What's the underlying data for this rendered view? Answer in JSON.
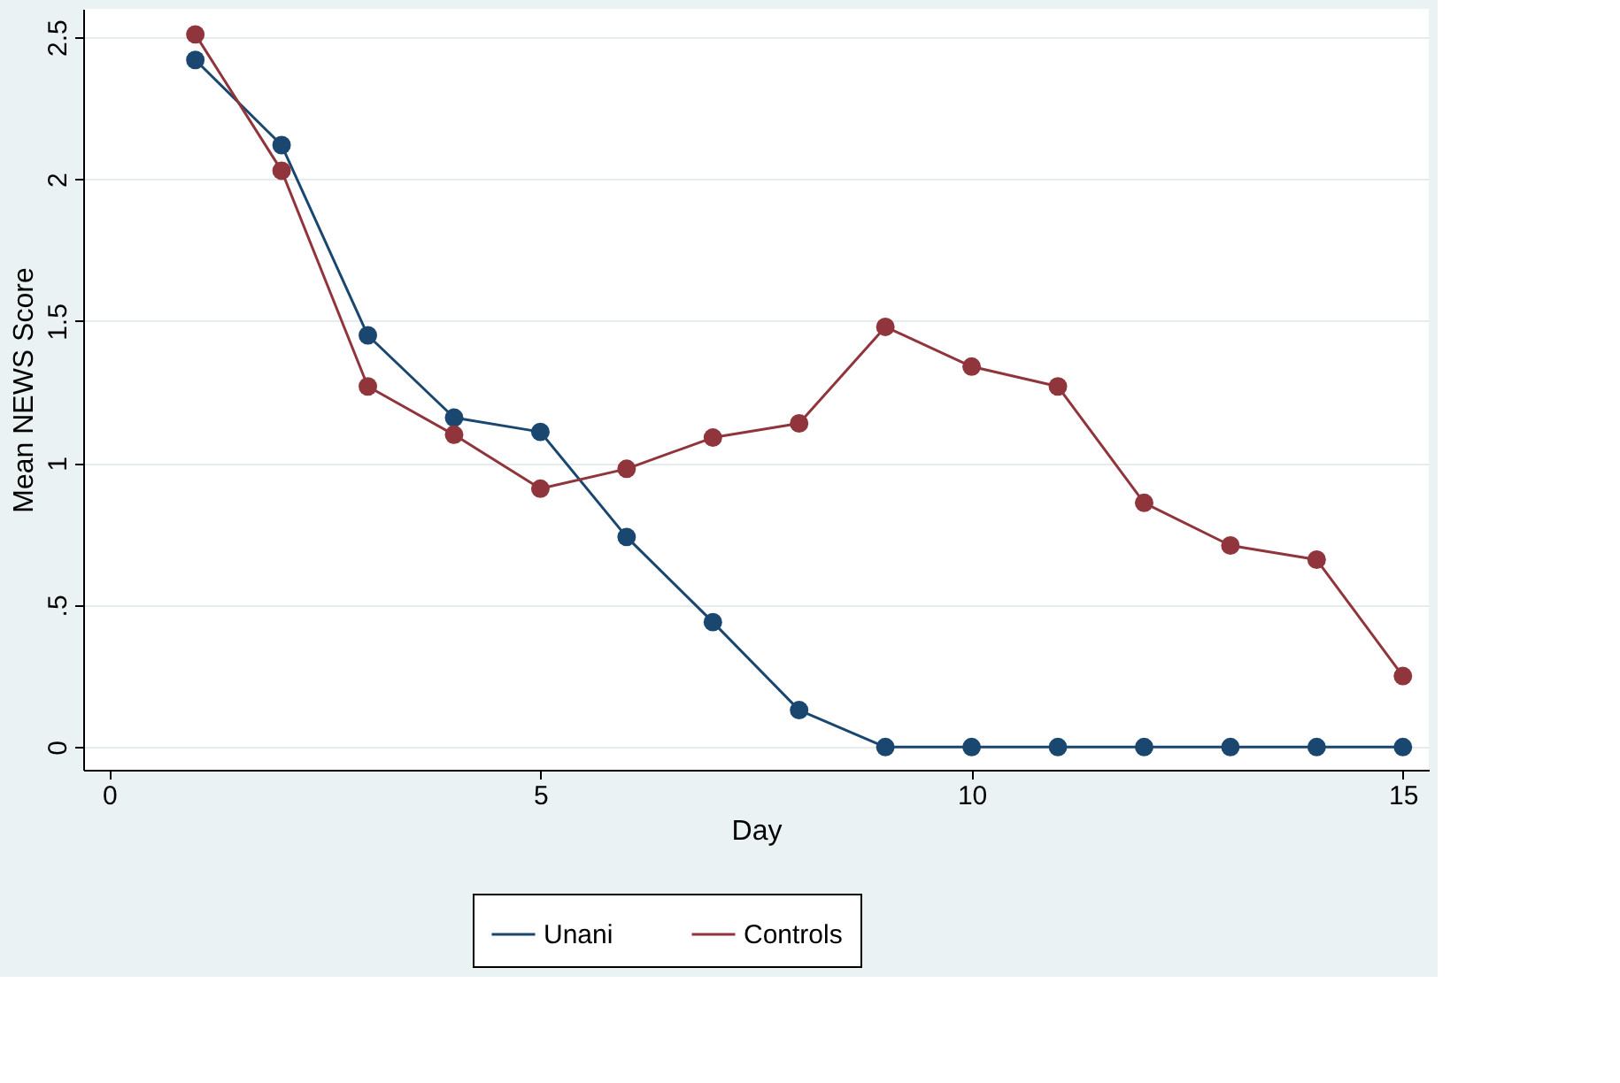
{
  "chart_data": {
    "type": "line",
    "xlabel": "Day",
    "ylabel": "Mean NEWS Score",
    "x": [
      1,
      2,
      3,
      4,
      5,
      6,
      7,
      8,
      9,
      10,
      11,
      12,
      13,
      14,
      15
    ],
    "series": [
      {
        "name": "Unani",
        "color": "#1a476f",
        "values": [
          2.42,
          2.12,
          1.45,
          1.16,
          1.11,
          0.74,
          0.44,
          0.13,
          0,
          0,
          0,
          0,
          0,
          0,
          0
        ]
      },
      {
        "name": "Controls",
        "color": "#90353b",
        "values": [
          2.51,
          2.03,
          1.27,
          1.1,
          0.91,
          0.98,
          1.09,
          1.14,
          1.48,
          1.34,
          1.27,
          0.86,
          0.71,
          0.66,
          0.25
        ]
      }
    ],
    "xlim": [
      -0.3,
      15.3
    ],
    "xticks": [
      0,
      5,
      10,
      15
    ],
    "ylim": [
      -0.08,
      2.6
    ],
    "yticks": [
      0,
      {
        "value": 0.5,
        "label": ".5"
      },
      1,
      1.5,
      2,
      2.5
    ],
    "grid": "y",
    "legend": "bottom",
    "marker": "circle",
    "line_style": "solid"
  }
}
